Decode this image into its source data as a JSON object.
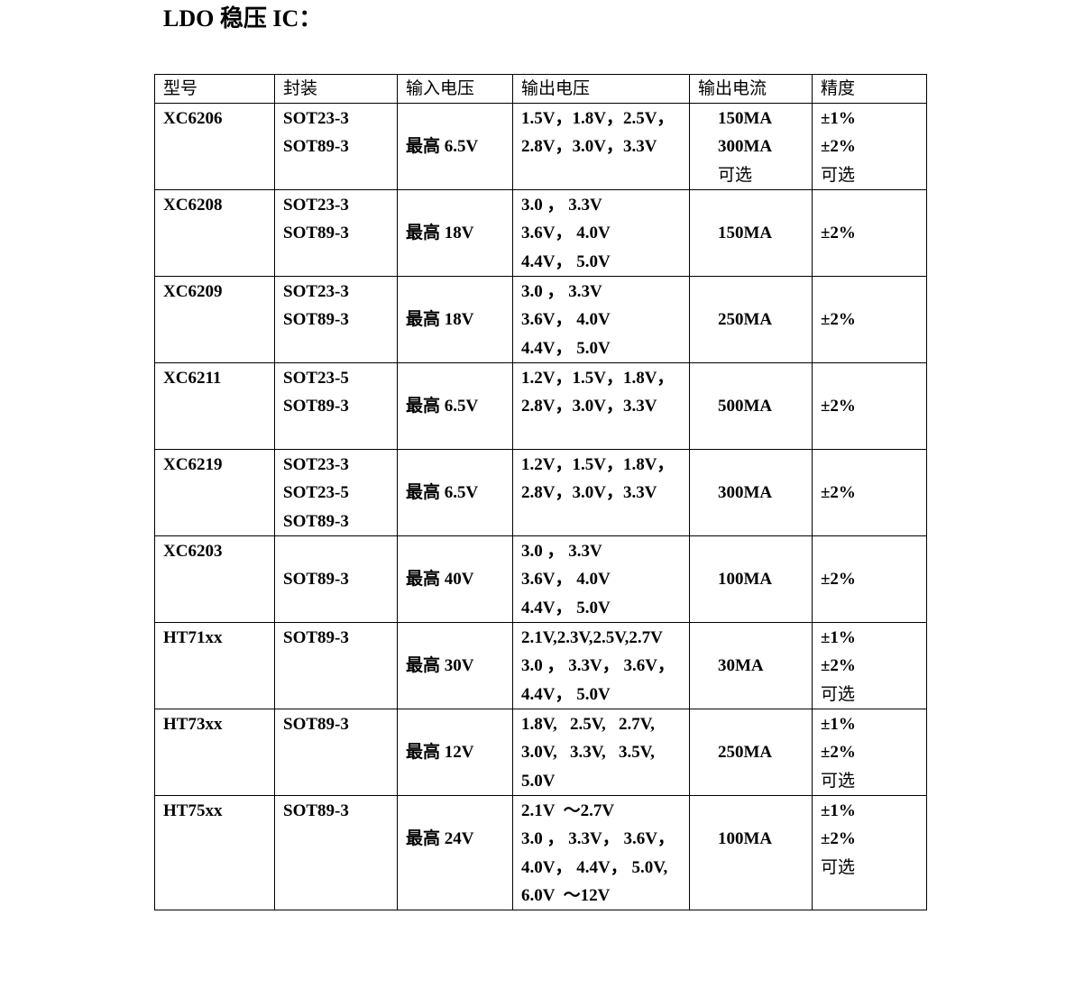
{
  "title": "LDO 稳压 IC：",
  "table": {
    "headers": [
      "型号",
      "封装",
      "输入电压",
      "输出电压",
      "输出电流",
      "精度"
    ],
    "rows": [
      {
        "cells": [
          [
            "XC6206"
          ],
          [
            "SOT23-3",
            "SOT89-3"
          ],
          [
            "",
            "最高 6.5V"
          ],
          [
            "1.5V，1.8V，2.5V，",
            "2.8V，3.0V，3.3V"
          ],
          [
            "150MA",
            "300MA",
            "可选"
          ],
          [
            "±1%",
            "±2%",
            "可选"
          ]
        ]
      },
      {
        "cells": [
          [
            "XC6208"
          ],
          [
            "SOT23-3",
            "SOT89-3"
          ],
          [
            "",
            "最高 18V"
          ],
          [
            "3.0 ， 3.3V",
            "3.6V， 4.0V",
            "4.4V， 5.0V"
          ],
          [
            "",
            "150MA"
          ],
          [
            "",
            "±2%"
          ]
        ]
      },
      {
        "cells": [
          [
            "XC6209"
          ],
          [
            "SOT23-3",
            "SOT89-3"
          ],
          [
            "",
            "最高 18V"
          ],
          [
            "3.0 ， 3.3V",
            "3.6V， 4.0V",
            "4.4V， 5.0V"
          ],
          [
            "",
            "250MA"
          ],
          [
            "",
            "±2%"
          ]
        ]
      },
      {
        "cells": [
          [
            "XC6211"
          ],
          [
            "SOT23-5",
            "SOT89-3"
          ],
          [
            "",
            "最高 6.5V"
          ],
          [
            "1.2V，1.5V，1.8V，",
            "2.8V，3.0V，3.3V"
          ],
          [
            "",
            "500MA"
          ],
          [
            "",
            "±2%"
          ]
        ]
      },
      {
        "cells": [
          [
            "XC6219"
          ],
          [
            "SOT23-3",
            "SOT23-5",
            "SOT89-3"
          ],
          [
            "",
            "最高 6.5V"
          ],
          [
            "1.2V，1.5V，1.8V，",
            "2.8V，3.0V，3.3V"
          ],
          [
            "",
            "300MA"
          ],
          [
            "",
            "±2%"
          ]
        ]
      },
      {
        "cells": [
          [
            "XC6203"
          ],
          [
            "",
            "SOT89-3"
          ],
          [
            "",
            "最高 40V"
          ],
          [
            "3.0 ， 3.3V",
            "3.6V， 4.0V",
            "4.4V， 5.0V"
          ],
          [
            "",
            "100MA"
          ],
          [
            "",
            "±2%"
          ]
        ]
      },
      {
        "cells": [
          [
            "HT71xx"
          ],
          [
            "SOT89-3"
          ],
          [
            "",
            "最高 30V"
          ],
          [
            "2.1V,2.3V,2.5V,2.7V",
            "3.0 ， 3.3V， 3.6V，",
            "4.4V， 5.0V"
          ],
          [
            "",
            "30MA"
          ],
          [
            "±1%",
            "±2%",
            "可选"
          ]
        ]
      },
      {
        "cells": [
          [
            "HT73xx"
          ],
          [
            "SOT89-3"
          ],
          [
            "",
            "最高 12V"
          ],
          [
            "1.8V,   2.5V,   2.7V,",
            "3.0V,   3.3V,   3.5V,",
            "5.0V"
          ],
          [
            "",
            "250MA"
          ],
          [
            "±1%",
            "±2%",
            "可选"
          ]
        ]
      },
      {
        "cells": [
          [
            "HT75xx"
          ],
          [
            "SOT89-3"
          ],
          [
            "",
            "最高 24V"
          ],
          [
            "2.1V  ～2.7V",
            "3.0 ， 3.3V， 3.6V，",
            "4.0V， 4.4V， 5.0V,",
            "6.0V  ～12V"
          ],
          [
            "",
            "100MA"
          ],
          [
            "±1%",
            "±2%",
            "可选"
          ]
        ]
      }
    ]
  }
}
